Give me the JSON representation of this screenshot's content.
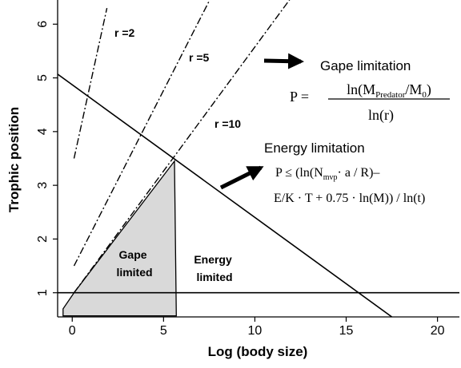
{
  "chart_data": {
    "type": "line",
    "xlabel": "Log (body size)",
    "ylabel": "Trophic position",
    "xlim": [
      -0.8,
      21.2
    ],
    "ylim": [
      0.55,
      6.45
    ],
    "xticks": [
      0,
      5,
      10,
      15,
      20
    ],
    "yticks": [
      1,
      2,
      3,
      4,
      5,
      6
    ],
    "grid": false,
    "series": [
      {
        "name": "r =2",
        "style": "dash-dot",
        "x": [
          0.1,
          1.9
        ],
        "y": [
          3.5,
          6.3
        ]
      },
      {
        "name": "r =5",
        "style": "dash-dot",
        "x": [
          0.1,
          7.6
        ],
        "y": [
          1.5,
          6.5
        ]
      },
      {
        "name": "r =10",
        "style": "dash-dot",
        "x": [
          0.1,
          12.0
        ],
        "y": [
          1.0,
          6.5
        ]
      },
      {
        "name": "",
        "style": "solid",
        "x": [
          -0.8,
          17.5
        ],
        "y": [
          5.07,
          0.55
        ]
      },
      {
        "name": "",
        "style": "solid",
        "x": [
          -0.8,
          21.2
        ],
        "y": [
          1.0,
          1.0
        ]
      }
    ],
    "shaded_region": {
      "x": [
        -0.5,
        0.1,
        5.6,
        5.7,
        -0.5
      ],
      "y": [
        0.7,
        1.0,
        3.45,
        0.57,
        0.57
      ],
      "fill": "#d9d9d9"
    },
    "annotations": {
      "gape_limited": [
        "Gape",
        "limited"
      ],
      "energy_limited": [
        "Energy",
        "limited"
      ],
      "gape_limitation": {
        "title": "Gape limitation",
        "lhs": "P =",
        "numerator": [
          "ln(M",
          "Predator",
          "/M",
          "0",
          ")"
        ],
        "denominator": "ln(r)"
      },
      "energy_limitation": {
        "title": "Energy limitation",
        "line1": [
          "P ≤ (ln(N",
          "mvp",
          "· a / R)–"
        ],
        "line2": "E/K · T + 0.75 · ln(M)) / ln(t)"
      }
    }
  }
}
